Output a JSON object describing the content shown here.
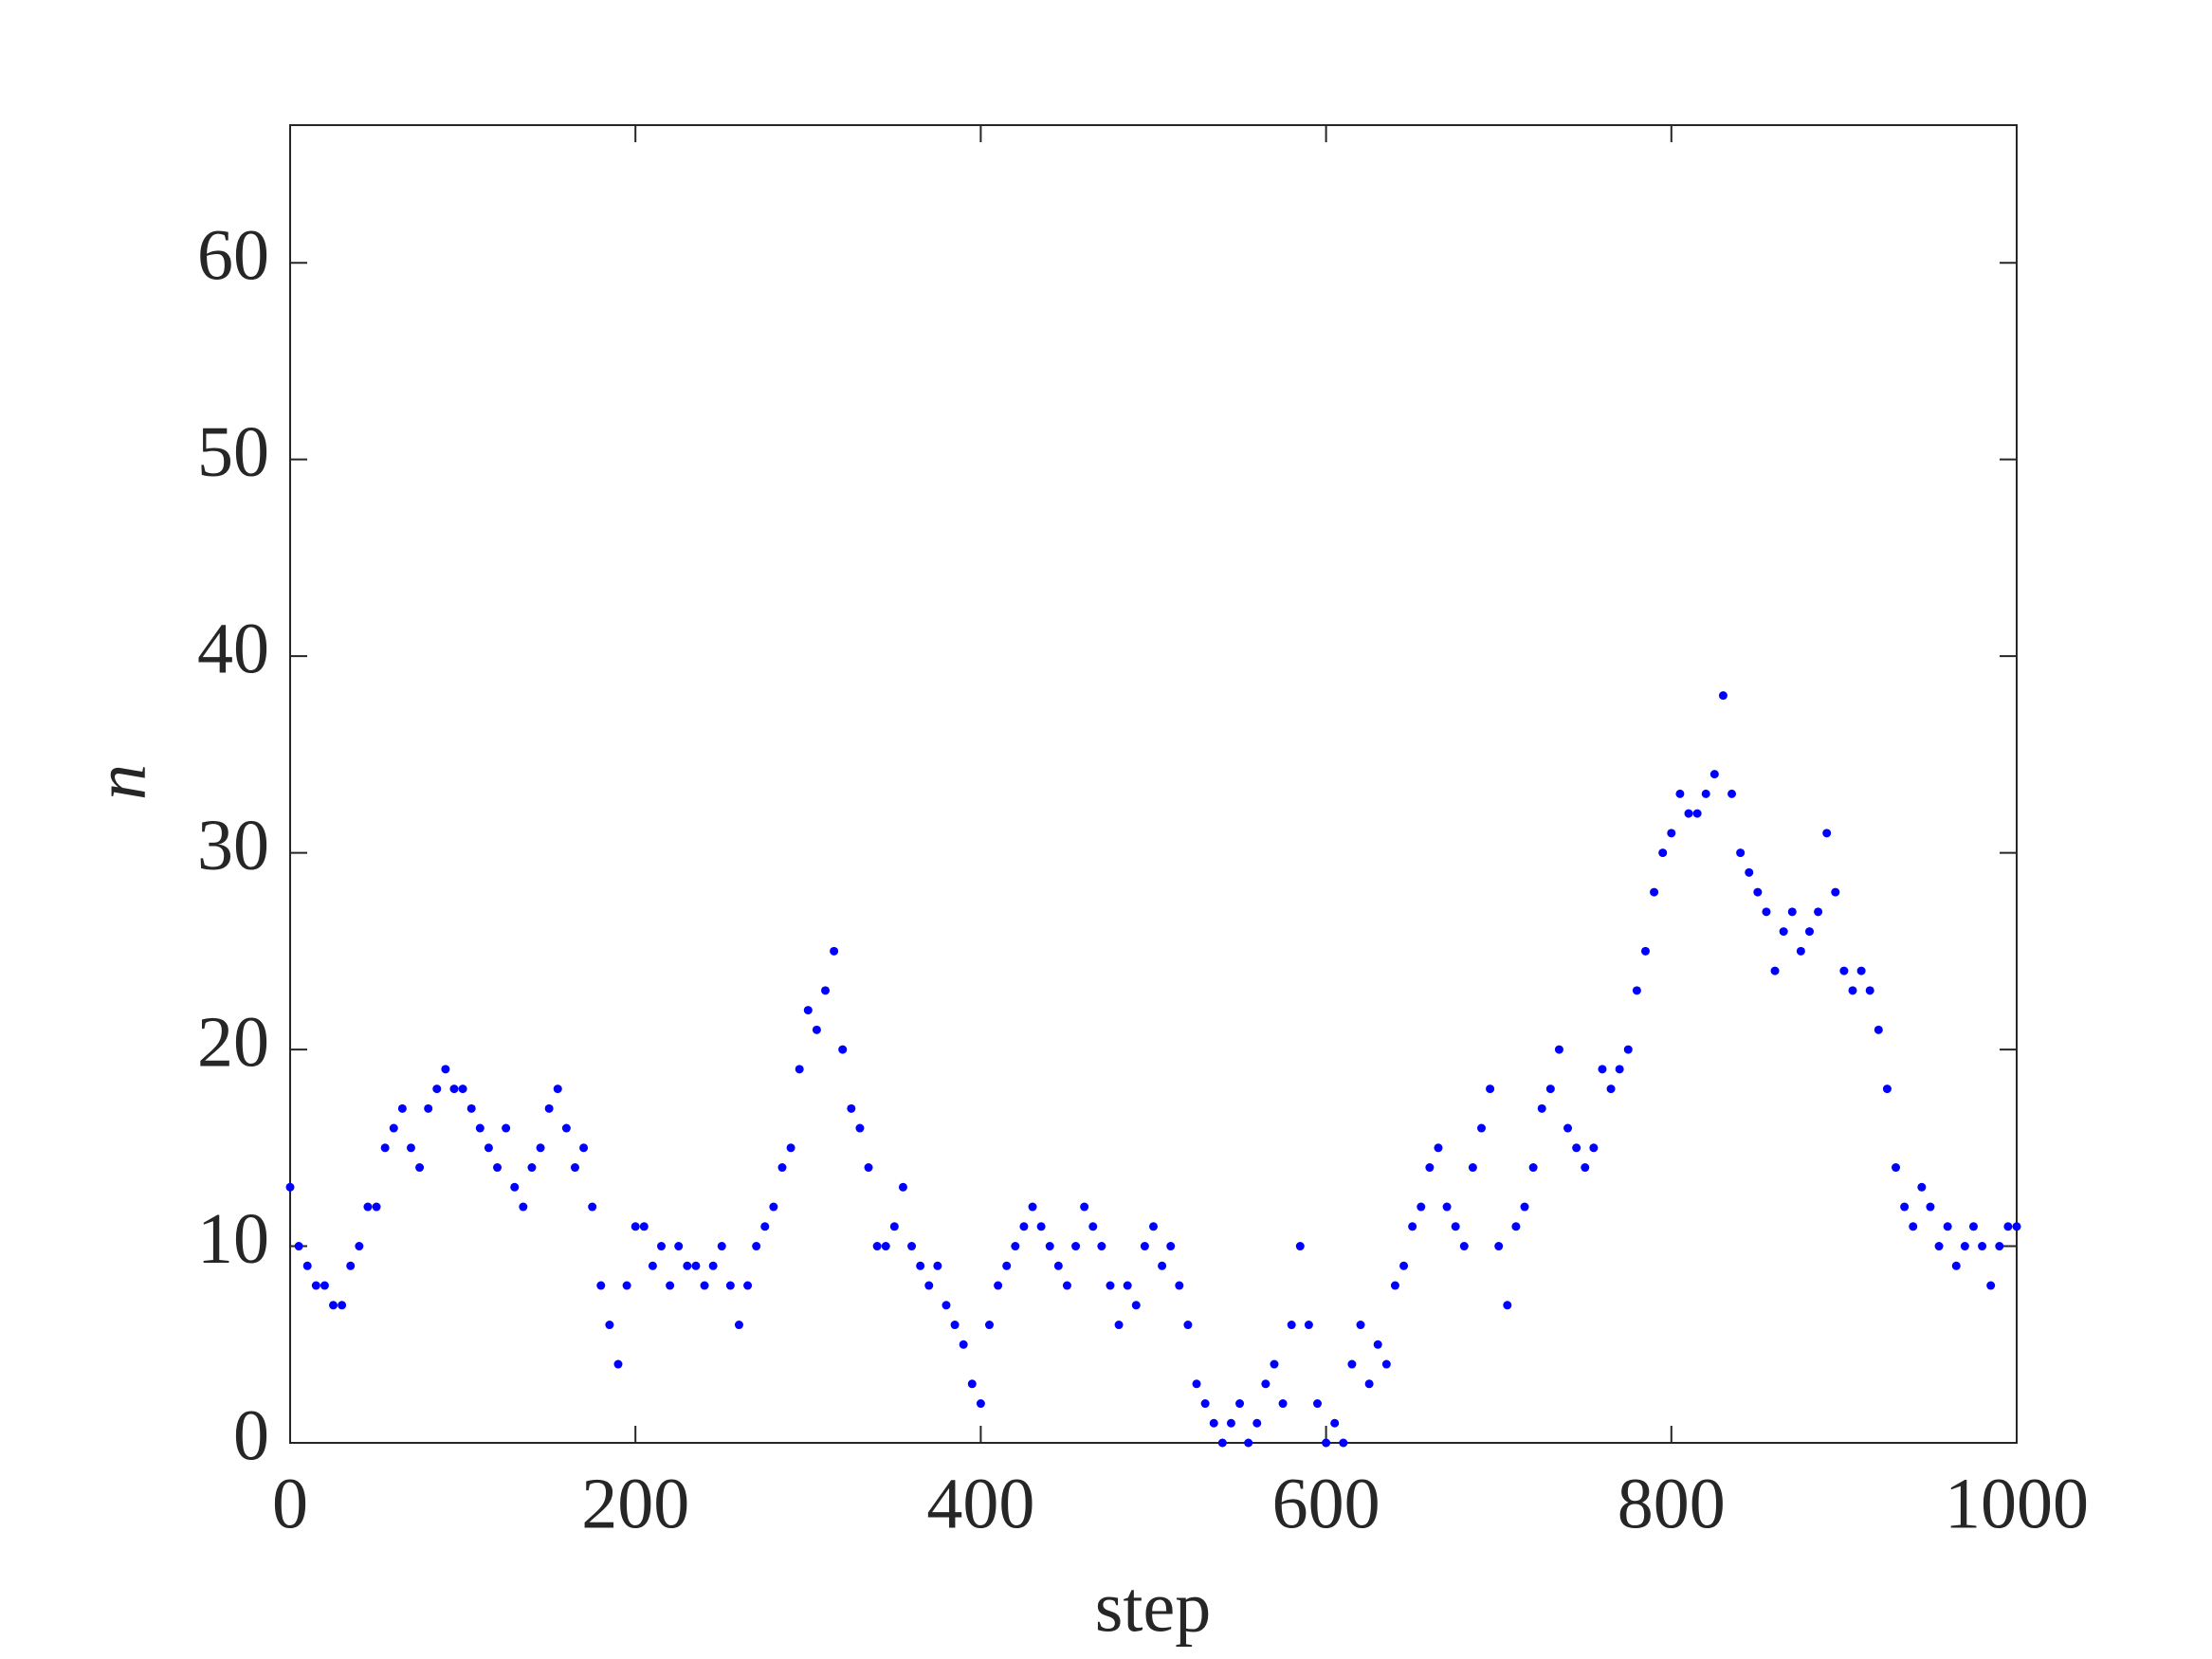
{
  "chart_data": {
    "type": "scatter",
    "xlabel": "step",
    "ylabel": "n",
    "color": "#0000ff",
    "xlim": [
      0,
      1000
    ],
    "ylim": [
      0,
      67
    ],
    "xticks": [
      0,
      200,
      400,
      600,
      800,
      1000
    ],
    "yticks": [
      0,
      10,
      20,
      30,
      40,
      50,
      60
    ],
    "x": [
      0,
      5,
      10,
      15,
      20,
      25,
      30,
      35,
      40,
      45,
      50,
      55,
      60,
      65,
      70,
      75,
      80,
      85,
      90,
      95,
      100,
      105,
      110,
      115,
      120,
      125,
      130,
      135,
      140,
      145,
      150,
      155,
      160,
      165,
      170,
      175,
      180,
      185,
      190,
      195,
      200,
      205,
      210,
      215,
      220,
      225,
      230,
      235,
      240,
      245,
      250,
      255,
      260,
      265,
      270,
      275,
      280,
      285,
      290,
      295,
      300,
      305,
      310,
      315,
      320,
      325,
      330,
      335,
      340,
      345,
      350,
      355,
      360,
      365,
      370,
      375,
      380,
      385,
      390,
      395,
      400,
      405,
      410,
      415,
      420,
      425,
      430,
      435,
      440,
      445,
      450,
      455,
      460,
      465,
      470,
      475,
      480,
      485,
      490,
      495,
      500,
      505,
      510,
      515,
      520,
      525,
      530,
      535,
      540,
      545,
      550,
      555,
      560,
      565,
      570,
      575,
      580,
      585,
      590,
      595,
      600,
      605,
      610,
      615,
      620,
      625,
      630,
      635,
      640,
      645,
      650,
      655,
      660,
      665,
      670,
      675,
      680,
      685,
      690,
      695,
      700,
      705,
      710,
      715,
      720,
      725,
      730,
      735,
      740,
      745,
      750,
      755,
      760,
      765,
      770,
      775,
      780,
      785,
      790,
      795,
      800,
      805,
      810,
      815,
      820,
      825,
      830,
      835,
      840,
      845,
      850,
      855,
      860,
      865,
      870,
      875,
      880,
      885,
      890,
      895,
      900,
      905,
      910,
      915,
      920,
      925,
      930,
      935,
      940,
      945,
      950,
      955,
      960,
      965,
      970,
      975,
      980,
      985,
      990,
      995,
      1000
    ],
    "values": [
      13,
      10,
      9,
      8,
      8,
      7,
      7,
      9,
      10,
      12,
      12,
      15,
      16,
      17,
      15,
      14,
      17,
      18,
      19,
      18,
      18,
      17,
      16,
      15,
      14,
      16,
      13,
      12,
      14,
      15,
      17,
      18,
      16,
      14,
      15,
      12,
      8,
      6,
      4,
      8,
      11,
      11,
      9,
      10,
      8,
      10,
      9,
      9,
      8,
      9,
      10,
      8,
      6,
      8,
      10,
      11,
      12,
      14,
      15,
      19,
      22,
      21,
      23,
      25,
      20,
      17,
      16,
      14,
      10,
      10,
      11,
      13,
      10,
      9,
      8,
      9,
      7,
      6,
      5,
      3,
      2,
      6,
      8,
      9,
      10,
      11,
      12,
      11,
      10,
      9,
      8,
      10,
      12,
      11,
      10,
      8,
      6,
      8,
      7,
      10,
      11,
      9,
      10,
      8,
      6,
      3,
      2,
      1,
      0,
      1,
      2,
      0,
      1,
      3,
      4,
      2,
      6,
      10,
      6,
      2,
      0,
      1,
      0,
      4,
      6,
      3,
      5,
      4,
      8,
      9,
      11,
      12,
      14,
      15,
      12,
      11,
      10,
      14,
      16,
      18,
      10,
      7,
      11,
      12,
      14,
      17,
      18,
      20,
      16,
      15,
      14,
      15,
      19,
      18,
      19,
      20,
      23,
      25,
      28,
      30,
      31,
      33,
      32,
      32,
      33,
      34,
      38,
      33,
      30,
      29,
      28,
      27,
      24,
      26,
      27,
      25,
      26,
      27,
      31,
      28,
      24,
      23,
      24,
      23,
      21,
      18,
      14,
      12,
      11,
      13,
      12,
      10,
      11,
      9,
      10,
      11,
      10,
      8,
      10,
      11,
      11
    ]
  }
}
